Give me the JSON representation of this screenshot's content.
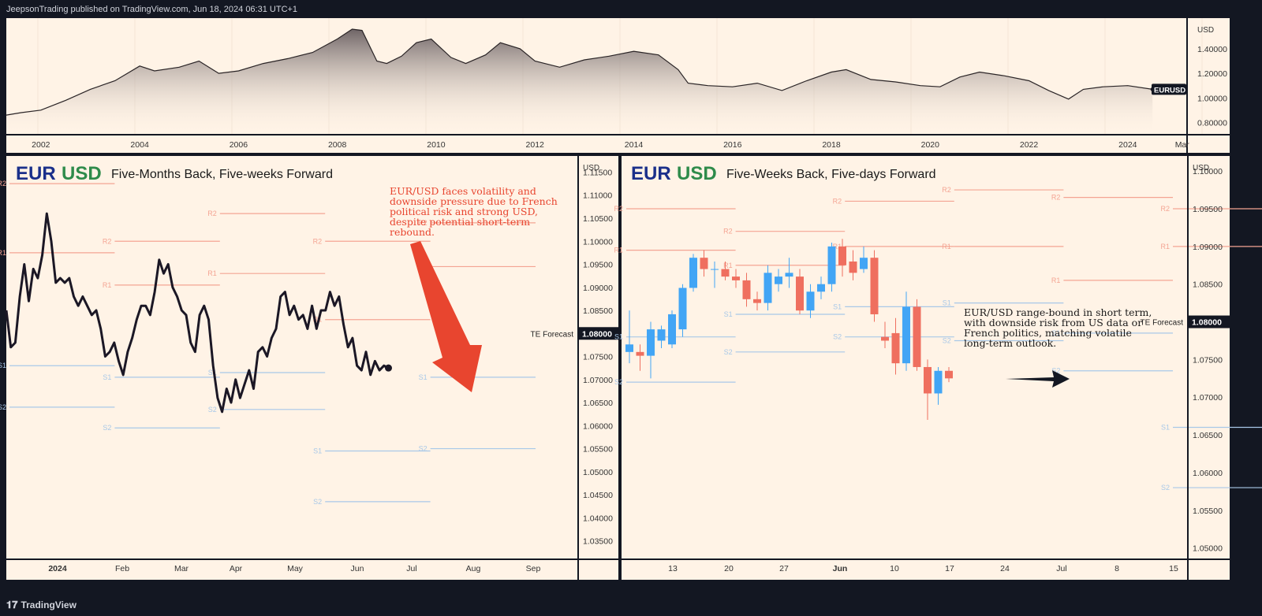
{
  "header": {
    "publisher_text": "JeepsonTrading published on TradingView.com, Jun 18, 2024 06:31 UTC+1"
  },
  "footer": {
    "brand": "TradingView",
    "logo_icon": "tradingview-logo-icon"
  },
  "colors": {
    "background": "#131722",
    "panel": "#fff3e6",
    "line": "#1b1725",
    "bull": "#42a5f5",
    "bear": "#ef6f5f",
    "eur": "#1a2f8a",
    "usd": "#2e8b4a",
    "annotation": "#e8452f",
    "resistance": "#f4a493",
    "support": "#a8c8e8"
  },
  "chart_data": [
    {
      "type": "area",
      "symbol": "EURUSD",
      "currency": "USD",
      "x_tick_labels": [
        "2002",
        "2004",
        "2006",
        "2008",
        "2010",
        "2012",
        "2014",
        "2016",
        "2018",
        "2020",
        "2022",
        "2024",
        "Mar"
      ],
      "y_tick_labels": [
        "1.40000",
        "1.20000",
        "1.00000",
        "0.80000"
      ],
      "ylim": [
        0.7,
        1.65
      ],
      "xlim": [
        2001.3,
        2025.2
      ],
      "x": [
        2001.3,
        2001.6,
        2002.0,
        2002.5,
        2003.0,
        2003.5,
        2004.0,
        2004.3,
        2004.8,
        2005.2,
        2005.6,
        2006.0,
        2006.5,
        2007.0,
        2007.5,
        2008.0,
        2008.3,
        2008.5,
        2008.8,
        2009.0,
        2009.3,
        2009.6,
        2009.9,
        2010.3,
        2010.6,
        2011.0,
        2011.3,
        2011.7,
        2012.0,
        2012.5,
        2013.0,
        2013.5,
        2014.0,
        2014.5,
        2014.9,
        2015.1,
        2015.5,
        2016.0,
        2016.5,
        2017.0,
        2017.5,
        2018.0,
        2018.3,
        2018.8,
        2019.3,
        2019.8,
        2020.2,
        2020.6,
        2021.0,
        2021.5,
        2022.0,
        2022.4,
        2022.8,
        2023.1,
        2023.5,
        2024.0,
        2024.5
      ],
      "y": [
        0.86,
        0.88,
        0.9,
        0.98,
        1.07,
        1.14,
        1.26,
        1.22,
        1.25,
        1.3,
        1.2,
        1.22,
        1.28,
        1.32,
        1.37,
        1.48,
        1.56,
        1.55,
        1.3,
        1.28,
        1.34,
        1.45,
        1.48,
        1.33,
        1.28,
        1.35,
        1.45,
        1.4,
        1.3,
        1.25,
        1.31,
        1.34,
        1.38,
        1.35,
        1.23,
        1.12,
        1.1,
        1.09,
        1.12,
        1.06,
        1.14,
        1.21,
        1.23,
        1.15,
        1.13,
        1.1,
        1.09,
        1.17,
        1.21,
        1.18,
        1.14,
        1.06,
        0.99,
        1.07,
        1.09,
        1.1,
        1.07
      ]
    },
    {
      "type": "line",
      "title_eur": "EUR",
      "title_usd": "USD",
      "subtitle": "Five-Months Back, Five-weeks Forward",
      "currency": "USD",
      "annotation": "EUR/USD faces volatility and downside pressure due to French political risk and strong USD, despite potential short-term rebound.",
      "x_tick_labels": [
        "2024",
        "Feb",
        "Mar",
        "Apr",
        "May",
        "Jun",
        "Jul",
        "Aug",
        "Sep"
      ],
      "y_tick_labels": [
        "1.11500",
        "1.11000",
        "1.10500",
        "1.10000",
        "1.09500",
        "1.09000",
        "1.08500",
        "1.08000",
        "1.07500",
        "1.07000",
        "1.06500",
        "1.06000",
        "1.05500",
        "1.05000",
        "1.04500",
        "1.04000",
        "1.03500"
      ],
      "ylim": [
        1.031,
        1.1185
      ],
      "forecast_label": "TE Forecast",
      "forecast_value": "1.08000",
      "x": [
        0,
        2,
        4,
        6,
        8,
        10,
        12,
        14,
        16,
        18,
        20,
        22,
        24,
        26,
        28,
        30,
        32,
        34,
        36,
        38,
        40,
        42,
        44,
        46,
        48,
        50,
        52,
        54,
        56,
        58,
        60,
        62,
        64,
        66,
        68,
        70,
        72,
        74,
        76,
        78,
        80,
        82,
        84,
        86,
        88,
        90,
        92,
        94,
        96,
        98,
        100,
        102,
        104,
        106,
        108,
        110,
        112,
        114,
        116,
        118,
        120,
        122,
        124,
        126,
        128,
        130,
        132,
        134,
        136,
        138,
        140,
        142,
        144,
        146,
        148,
        150,
        152,
        154,
        156,
        158,
        160,
        162,
        164,
        166,
        168,
        170
      ],
      "y": [
        1.085,
        1.077,
        1.078,
        1.088,
        1.095,
        1.087,
        1.094,
        1.092,
        1.097,
        1.106,
        1.1,
        1.091,
        1.092,
        1.091,
        1.092,
        1.088,
        1.086,
        1.088,
        1.086,
        1.084,
        1.085,
        1.081,
        1.075,
        1.076,
        1.078,
        1.074,
        1.071,
        1.076,
        1.079,
        1.083,
        1.086,
        1.086,
        1.084,
        1.089,
        1.096,
        1.093,
        1.095,
        1.09,
        1.088,
        1.085,
        1.084,
        1.078,
        1.076,
        1.084,
        1.086,
        1.083,
        1.073,
        1.066,
        1.063,
        1.068,
        1.065,
        1.07,
        1.066,
        1.069,
        1.072,
        1.068,
        1.076,
        1.077,
        1.075,
        1.079,
        1.081,
        1.088,
        1.089,
        1.084,
        1.086,
        1.083,
        1.084,
        1.081,
        1.086,
        1.081,
        1.085,
        1.085,
        1.089,
        1.086,
        1.088,
        1.082,
        1.077,
        1.079,
        1.073,
        1.072,
        1.076,
        1.071,
        1.074,
        1.072,
        1.073,
        1.0725
      ],
      "x_range": [
        0,
        300
      ],
      "pivot_levels": [
        {
          "label": "R2",
          "value": 1.1125,
          "x0": 0,
          "x1": 46
        },
        {
          "label": "R1",
          "value": 1.0975,
          "x0": 0,
          "x1": 46
        },
        {
          "label": "S1",
          "value": 1.073,
          "x0": 0,
          "x1": 46
        },
        {
          "label": "S2",
          "value": 1.064,
          "x0": 0,
          "x1": 46
        },
        {
          "label": "R2",
          "value": 1.1,
          "x0": 46,
          "x1": 92
        },
        {
          "label": "R1",
          "value": 1.0905,
          "x0": 46,
          "x1": 92
        },
        {
          "label": "S1",
          "value": 1.0705,
          "x0": 46,
          "x1": 92
        },
        {
          "label": "S2",
          "value": 1.0595,
          "x0": 46,
          "x1": 92
        },
        {
          "label": "R2",
          "value": 1.106,
          "x0": 92,
          "x1": 138
        },
        {
          "label": "R1",
          "value": 1.093,
          "x0": 92,
          "x1": 138
        },
        {
          "label": "S1",
          "value": 1.0715,
          "x0": 92,
          "x1": 138
        },
        {
          "label": "S2",
          "value": 1.0635,
          "x0": 92,
          "x1": 138
        },
        {
          "label": "R2",
          "value": 1.1,
          "x0": 138,
          "x1": 184
        },
        {
          "label": "R1",
          "value": 1.083,
          "x0": 138,
          "x1": 184
        },
        {
          "label": "S1",
          "value": 1.0545,
          "x0": 138,
          "x1": 184
        },
        {
          "label": "S2",
          "value": 1.0435,
          "x0": 138,
          "x1": 184
        },
        {
          "label": "R2",
          "value": 1.104,
          "x0": 184,
          "x1": 230
        },
        {
          "label": "R1",
          "value": 1.0945,
          "x0": 184,
          "x1": 230
        },
        {
          "label": "S1",
          "value": 1.0705,
          "x0": 184,
          "x1": 230
        },
        {
          "label": "S2",
          "value": 1.055,
          "x0": 184,
          "x1": 230
        }
      ]
    },
    {
      "type": "candlestick",
      "title_eur": "EUR",
      "title_usd": "USD",
      "subtitle": "Five-Weeks Back, Five-days Forward",
      "currency": "USD",
      "annotation": "EUR/USD range-bound in short term, with downside risk from US data or French politics, matching volatile long-term outlook.",
      "x_tick_labels": [
        "13",
        "20",
        "27",
        "Jun",
        "10",
        "17",
        "24",
        "Jul",
        "8",
        "15"
      ],
      "y_tick_labels": [
        "1.10000",
        "1.09500",
        "1.09000",
        "1.08500",
        "1.08000",
        "1.07500",
        "1.07000",
        "1.06500",
        "1.06000",
        "1.05500",
        "1.05000"
      ],
      "ylim": [
        1.0485,
        1.102
      ],
      "forecast_label": "TE Forecast",
      "forecast_value": "1.08000",
      "candles": [
        {
          "o": 1.076,
          "h": 1.0815,
          "l": 1.0745,
          "c": 1.077
        },
        {
          "o": 1.076,
          "h": 1.077,
          "l": 1.0735,
          "c": 1.0755
        },
        {
          "o": 1.0755,
          "h": 1.08,
          "l": 1.0725,
          "c": 1.079
        },
        {
          "o": 1.0775,
          "h": 1.0795,
          "l": 1.0765,
          "c": 1.079
        },
        {
          "o": 1.077,
          "h": 1.0815,
          "l": 1.0765,
          "c": 1.081
        },
        {
          "o": 1.079,
          "h": 1.085,
          "l": 1.078,
          "c": 1.0845
        },
        {
          "o": 1.0845,
          "h": 1.089,
          "l": 1.084,
          "c": 1.0885
        },
        {
          "o": 1.0885,
          "h": 1.0895,
          "l": 1.086,
          "c": 1.087
        },
        {
          "o": 1.087,
          "h": 1.088,
          "l": 1.0845,
          "c": 1.087
        },
        {
          "o": 1.087,
          "h": 1.088,
          "l": 1.0855,
          "c": 1.086
        },
        {
          "o": 1.086,
          "h": 1.087,
          "l": 1.0845,
          "c": 1.0855
        },
        {
          "o": 1.0855,
          "h": 1.0865,
          "l": 1.082,
          "c": 1.083
        },
        {
          "o": 1.083,
          "h": 1.084,
          "l": 1.0815,
          "c": 1.0825
        },
        {
          "o": 1.0825,
          "h": 1.0875,
          "l": 1.0815,
          "c": 1.0865
        },
        {
          "o": 1.085,
          "h": 1.087,
          "l": 1.084,
          "c": 1.086
        },
        {
          "o": 1.086,
          "h": 1.0885,
          "l": 1.0845,
          "c": 1.0865
        },
        {
          "o": 1.086,
          "h": 1.087,
          "l": 1.081,
          "c": 1.0815
        },
        {
          "o": 1.0815,
          "h": 1.085,
          "l": 1.0805,
          "c": 1.084
        },
        {
          "o": 1.084,
          "h": 1.086,
          "l": 1.083,
          "c": 1.085
        },
        {
          "o": 1.085,
          "h": 1.0905,
          "l": 1.084,
          "c": 1.09
        },
        {
          "o": 1.09,
          "h": 1.091,
          "l": 1.086,
          "c": 1.0875
        },
        {
          "o": 1.088,
          "h": 1.0895,
          "l": 1.0855,
          "c": 1.0865
        },
        {
          "o": 1.087,
          "h": 1.09,
          "l": 1.0865,
          "c": 1.0885
        },
        {
          "o": 1.0885,
          "h": 1.0895,
          "l": 1.08,
          "c": 1.081
        },
        {
          "o": 1.078,
          "h": 1.08,
          "l": 1.0765,
          "c": 1.0775
        },
        {
          "o": 1.0785,
          "h": 1.0805,
          "l": 1.073,
          "c": 1.0745
        },
        {
          "o": 1.0745,
          "h": 1.084,
          "l": 1.0735,
          "c": 1.082
        },
        {
          "o": 1.082,
          "h": 1.083,
          "l": 1.0735,
          "c": 1.074
        },
        {
          "o": 1.074,
          "h": 1.075,
          "l": 1.067,
          "c": 1.0705
        },
        {
          "o": 1.0705,
          "h": 1.074,
          "l": 1.069,
          "c": 1.0735
        },
        {
          "o": 1.0735,
          "h": 1.074,
          "l": 1.072,
          "c": 1.0725
        }
      ],
      "pivot_levels": [
        {
          "label": "R2",
          "value": 1.095,
          "x0": 0,
          "x1": 6
        },
        {
          "label": "R1",
          "value": 1.0895,
          "x0": 0,
          "x1": 6
        },
        {
          "label": "S1",
          "value": 1.078,
          "x0": 0,
          "x1": 6
        },
        {
          "label": "S2",
          "value": 1.072,
          "x0": 0,
          "x1": 6
        },
        {
          "label": "R2",
          "value": 1.092,
          "x0": 6,
          "x1": 12
        },
        {
          "label": "R1",
          "value": 1.0875,
          "x0": 6,
          "x1": 12
        },
        {
          "label": "S1",
          "value": 1.081,
          "x0": 6,
          "x1": 12
        },
        {
          "label": "S2",
          "value": 1.076,
          "x0": 6,
          "x1": 12
        },
        {
          "label": "R2",
          "value": 1.096,
          "x0": 12,
          "x1": 18
        },
        {
          "label": "R1",
          "value": 1.09,
          "x0": 12,
          "x1": 18
        },
        {
          "label": "S1",
          "value": 1.082,
          "x0": 12,
          "x1": 18
        },
        {
          "label": "S2",
          "value": 1.078,
          "x0": 12,
          "x1": 18
        },
        {
          "label": "R2",
          "value": 1.0975,
          "x0": 18,
          "x1": 24
        },
        {
          "label": "R1",
          "value": 1.09,
          "x0": 18,
          "x1": 24
        },
        {
          "label": "S1",
          "value": 1.0825,
          "x0": 18,
          "x1": 24
        },
        {
          "label": "S2",
          "value": 1.0775,
          "x0": 18,
          "x1": 24
        },
        {
          "label": "R2",
          "value": 1.0965,
          "x0": 24,
          "x1": 30
        },
        {
          "label": "R1",
          "value": 1.0855,
          "x0": 24,
          "x1": 30
        },
        {
          "label": "S1",
          "value": 1.0785,
          "x0": 24,
          "x1": 30
        },
        {
          "label": "S2",
          "value": 1.0735,
          "x0": 24,
          "x1": 30
        },
        {
          "label": "R2",
          "value": 1.095,
          "x0": 30,
          "x1": 36
        },
        {
          "label": "R1",
          "value": 1.09,
          "x0": 30,
          "x1": 36
        },
        {
          "label": "S1",
          "value": 1.066,
          "x0": 30,
          "x1": 36
        },
        {
          "label": "S2",
          "value": 1.058,
          "x0": 30,
          "x1": 36
        }
      ]
    }
  ]
}
